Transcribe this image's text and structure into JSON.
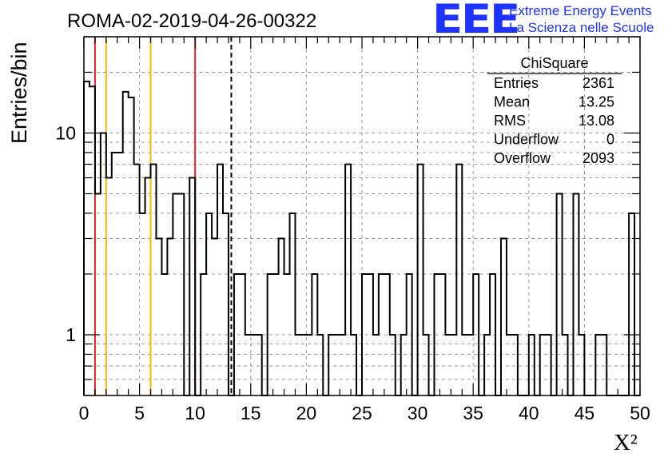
{
  "logo": {
    "text": "EEE",
    "line1": "Extreme Energy Events",
    "line2": "La Scienza nelle Scuole",
    "color": "#1f33ff"
  },
  "stats": {
    "title": "ChiSquare",
    "rows": [
      {
        "label": "Entries",
        "value": "2361"
      },
      {
        "label": "Mean",
        "value": "13.25"
      },
      {
        "label": "RMS",
        "value": "13.08"
      },
      {
        "label": "Underflow",
        "value": "0"
      },
      {
        "label": "Overflow",
        "value": "2093"
      }
    ]
  },
  "chart_data": {
    "type": "histogram",
    "title": "ROMA-02-2019-04-26-00322",
    "xlabel": "X²",
    "ylabel": "Entries/bin",
    "xlim": [
      0,
      50
    ],
    "ylim": [
      0.5,
      30
    ],
    "yscale": "log",
    "grid": true,
    "bin_width": 0.5,
    "x_ticks": [
      0,
      5,
      10,
      15,
      20,
      25,
      30,
      35,
      40,
      45,
      50
    ],
    "x_tick_labels": [
      "0",
      "5",
      "10",
      "15",
      "20",
      "25",
      "30",
      "35",
      "40",
      "45",
      "50"
    ],
    "y_tick_labels": [
      {
        "value": 1,
        "label": "1"
      },
      {
        "value": 10,
        "label": "10"
      }
    ],
    "bin_counts": [
      18,
      17,
      5,
      10,
      6,
      8,
      8,
      16,
      15,
      7,
      4,
      6,
      7,
      3,
      2,
      3,
      5,
      5,
      0,
      6,
      0,
      2,
      4,
      3,
      7,
      4,
      0,
      2,
      2,
      1,
      1,
      1,
      0,
      2,
      2,
      3,
      2,
      4,
      1,
      1,
      1,
      2,
      1,
      0,
      1,
      1,
      1,
      7,
      1,
      0,
      2,
      2,
      1,
      2,
      2,
      1,
      0,
      1,
      2,
      0,
      7,
      1,
      0,
      2,
      2,
      1,
      1,
      7,
      1,
      1,
      2,
      0,
      1,
      2,
      0,
      3,
      1,
      1,
      0,
      0,
      1,
      0,
      1,
      1,
      0,
      5,
      1,
      0,
      5,
      1,
      0,
      0,
      1,
      1,
      0,
      0,
      0,
      0,
      4,
      0
    ],
    "vertical_lines": [
      {
        "x": 1,
        "color": "#e8231f",
        "style": "solid"
      },
      {
        "x": 2,
        "color": "#f2b70a",
        "style": "solid"
      },
      {
        "x": 6,
        "color": "#f2b70a",
        "style": "solid"
      },
      {
        "x": 10,
        "color": "#e8231f",
        "style": "solid"
      },
      {
        "x": 13.25,
        "color": "#000000",
        "style": "dashed"
      }
    ]
  }
}
